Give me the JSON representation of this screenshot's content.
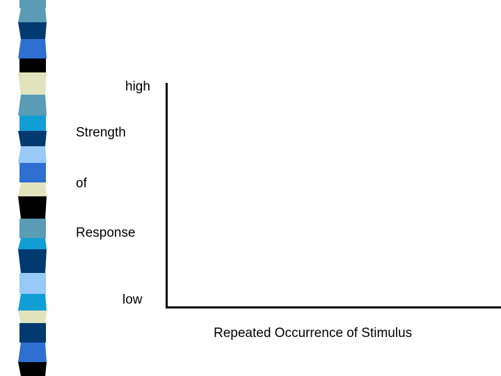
{
  "slide": {
    "y_axis": {
      "high_label": "high",
      "low_label": "low",
      "title_lines": [
        "Strength",
        "of",
        "Response"
      ]
    },
    "x_axis": {
      "title": "Repeated Occurrence of Stimulus"
    }
  },
  "decoration": {
    "stripe_colors": [
      "#2e6fd1",
      "#5a9bb5",
      "#003a70",
      "#000000",
      "#e1e3bd",
      "#119ed4",
      "#98c9f7"
    ]
  }
}
